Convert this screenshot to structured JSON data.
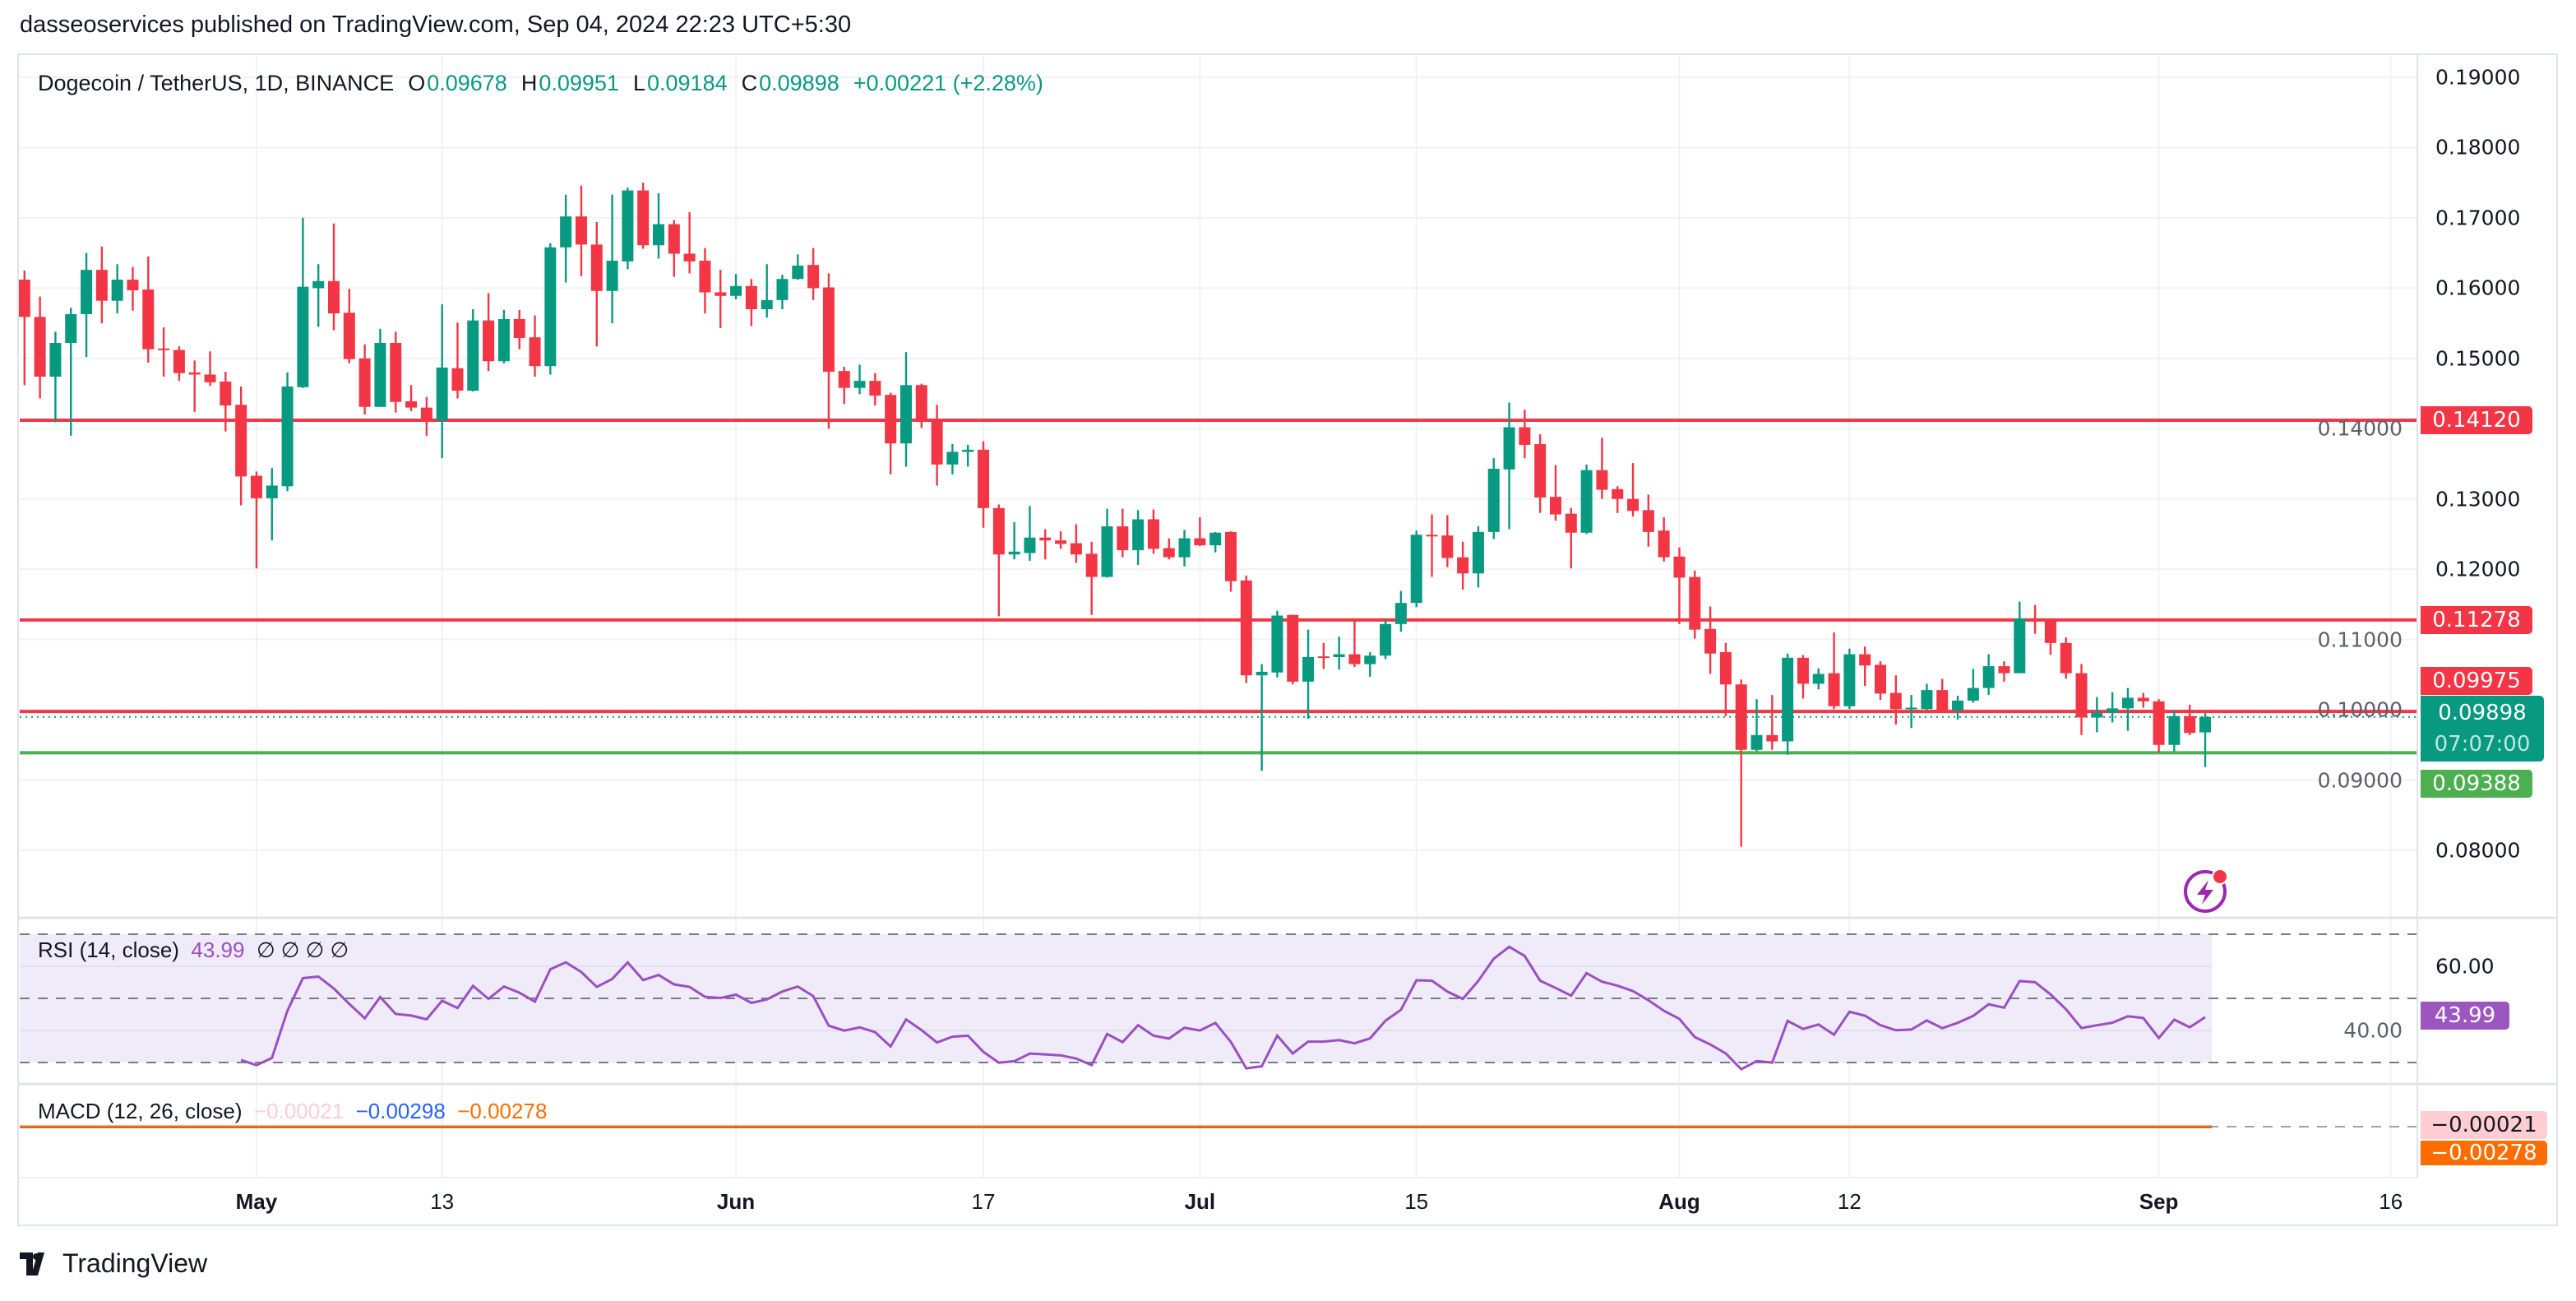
{
  "publisher_line": "dasseoservices published on TradingView.com, Sep 04, 2024 22:23 UTC+5:30",
  "legend": {
    "symbol": "Dogecoin / TetherUS, 1D, BINANCE",
    "o_label": "O",
    "o": "0.09678",
    "h_label": "H",
    "h": "0.09951",
    "l_label": "L",
    "l": "0.09184",
    "c_label": "C",
    "c": "0.09898",
    "change": "+0.00221 (+2.28%)"
  },
  "rsi_legend": {
    "name": "RSI (14, close)",
    "value": "43.99",
    "extras": "∅ ∅ ∅ ∅"
  },
  "macd_legend": {
    "name": "MACD (12, 26, close)",
    "hist": "−0.00021",
    "macd": "−0.00298",
    "signal": "−0.00278"
  },
  "price_labels": {
    "level1": "0.14120",
    "level2": "0.11278",
    "level3": "0.09975",
    "current": "0.09898",
    "countdown": "07:07:00",
    "support": "0.09388",
    "rsi": "43.99",
    "macd_hist": "−0.00021",
    "macd_signal": "−0.00278"
  },
  "colors": {
    "up": "#089981",
    "down": "#f23645",
    "support": "#4caf50",
    "rsi": "#9c4fc2",
    "macd": "#2962ff",
    "signal": "#ff6d00"
  },
  "logo_text": "TradingView",
  "chart_data": {
    "type": "candlestick",
    "title": "Dogecoin / TetherUS, 1D, BINANCE",
    "start_date": "2024-04-16",
    "ylim": [
      0.075,
      0.195
    ],
    "y_ticks": [
      "0.19000",
      "0.18000",
      "0.17000",
      "0.16000",
      "0.15000",
      "0.14000",
      "0.13000",
      "0.12000",
      "0.11000",
      "0.10000",
      "0.09000",
      "0.08000"
    ],
    "x_ticks": [
      {
        "label": "May",
        "date": "2024-05-01"
      },
      {
        "label": "13",
        "date": "2024-05-13"
      },
      {
        "label": "Jun",
        "date": "2024-06-01"
      },
      {
        "label": "17",
        "date": "2024-06-17"
      },
      {
        "label": "Jul",
        "date": "2024-07-01"
      },
      {
        "label": "15",
        "date": "2024-07-15"
      },
      {
        "label": "Aug",
        "date": "2024-08-01"
      },
      {
        "label": "12",
        "date": "2024-08-12"
      },
      {
        "label": "Sep",
        "date": "2024-09-01"
      },
      {
        "label": "16",
        "date": "2024-09-16"
      }
    ],
    "horizontal_lines": [
      {
        "value": 0.1412,
        "color": "#f23645"
      },
      {
        "value": 0.11278,
        "color": "#f23645"
      },
      {
        "value": 0.09975,
        "color": "#f23645"
      },
      {
        "value": 0.09388,
        "color": "#4caf50"
      }
    ],
    "rsi": {
      "period": 14,
      "upper": 70,
      "middle": 50,
      "lower": 30,
      "ticks": [
        "60.00",
        "40.00"
      ],
      "last": 43.99
    },
    "ohlc": [
      [
        0.1612,
        0.1625,
        0.1462,
        0.1559
      ],
      [
        0.1559,
        0.1588,
        0.1443,
        0.1474
      ],
      [
        0.1474,
        0.1538,
        0.1409,
        0.1522
      ],
      [
        0.1522,
        0.1572,
        0.139,
        0.1563
      ],
      [
        0.1563,
        0.165,
        0.1502,
        0.1626
      ],
      [
        0.1626,
        0.1659,
        0.155,
        0.1582
      ],
      [
        0.1582,
        0.1634,
        0.1564,
        0.1612
      ],
      [
        0.1612,
        0.163,
        0.1568,
        0.1597
      ],
      [
        0.1598,
        0.1645,
        0.1494,
        0.1513
      ],
      [
        0.1514,
        0.1544,
        0.1474,
        0.1512
      ],
      [
        0.1512,
        0.1517,
        0.1468,
        0.1479
      ],
      [
        0.148,
        0.1497,
        0.1424,
        0.1477
      ],
      [
        0.1477,
        0.151,
        0.1461,
        0.1466
      ],
      [
        0.1467,
        0.1481,
        0.1396,
        0.1433
      ],
      [
        0.1434,
        0.146,
        0.1291,
        0.1332
      ],
      [
        0.1333,
        0.1339,
        0.1201,
        0.1301
      ],
      [
        0.1301,
        0.1344,
        0.1241,
        0.1319
      ],
      [
        0.1318,
        0.148,
        0.1311,
        0.146
      ],
      [
        0.1459,
        0.17,
        0.1458,
        0.1602
      ],
      [
        0.16,
        0.1634,
        0.1545,
        0.161
      ],
      [
        0.161,
        0.1692,
        0.154,
        0.1564
      ],
      [
        0.1565,
        0.1599,
        0.1493,
        0.1499
      ],
      [
        0.15,
        0.152,
        0.142,
        0.1431
      ],
      [
        0.1431,
        0.1542,
        0.1431,
        0.1522
      ],
      [
        0.1522,
        0.1538,
        0.1423,
        0.1438
      ],
      [
        0.1439,
        0.1462,
        0.1425,
        0.143
      ],
      [
        0.143,
        0.1445,
        0.139,
        0.1411
      ],
      [
        0.1411,
        0.1577,
        0.1358,
        0.1487
      ],
      [
        0.1486,
        0.1551,
        0.1443,
        0.1454
      ],
      [
        0.1454,
        0.157,
        0.1453,
        0.1554
      ],
      [
        0.1554,
        0.1593,
        0.1482,
        0.1496
      ],
      [
        0.1496,
        0.1569,
        0.1493,
        0.1556
      ],
      [
        0.1556,
        0.1569,
        0.1513,
        0.1529
      ],
      [
        0.153,
        0.1561,
        0.1474,
        0.1489
      ],
      [
        0.1489,
        0.1664,
        0.1477,
        0.1658
      ],
      [
        0.1658,
        0.1733,
        0.1608,
        0.1702
      ],
      [
        0.1702,
        0.1746,
        0.1617,
        0.1662
      ],
      [
        0.1662,
        0.1694,
        0.1517,
        0.1596
      ],
      [
        0.1596,
        0.1733,
        0.155,
        0.1639
      ],
      [
        0.1638,
        0.1743,
        0.1627,
        0.1739
      ],
      [
        0.1739,
        0.175,
        0.1656,
        0.1661
      ],
      [
        0.1661,
        0.1735,
        0.1642,
        0.1691
      ],
      [
        0.1691,
        0.1697,
        0.1616,
        0.1649
      ],
      [
        0.1649,
        0.1708,
        0.1621,
        0.1638
      ],
      [
        0.1639,
        0.1657,
        0.1564,
        0.1594
      ],
      [
        0.1594,
        0.1626,
        0.1543,
        0.1589
      ],
      [
        0.1589,
        0.162,
        0.1584,
        0.1603
      ],
      [
        0.1603,
        0.1613,
        0.1546,
        0.157
      ],
      [
        0.157,
        0.1634,
        0.1558,
        0.1583
      ],
      [
        0.1583,
        0.1619,
        0.157,
        0.1613
      ],
      [
        0.1613,
        0.1648,
        0.1612,
        0.1632
      ],
      [
        0.1633,
        0.1657,
        0.1583,
        0.16
      ],
      [
        0.1601,
        0.1621,
        0.14,
        0.1481
      ],
      [
        0.1482,
        0.1488,
        0.1435,
        0.1458
      ],
      [
        0.1458,
        0.1491,
        0.1449,
        0.1468
      ],
      [
        0.1468,
        0.1479,
        0.1433,
        0.1447
      ],
      [
        0.1448,
        0.1451,
        0.1335,
        0.1379
      ],
      [
        0.1379,
        0.1509,
        0.1346,
        0.1462
      ],
      [
        0.1462,
        0.1464,
        0.1401,
        0.1413
      ],
      [
        0.141,
        0.1434,
        0.1319,
        0.1349
      ],
      [
        0.1349,
        0.1378,
        0.1335,
        0.1367
      ],
      [
        0.1367,
        0.1377,
        0.1346,
        0.137
      ],
      [
        0.137,
        0.1382,
        0.1259,
        0.1287
      ],
      [
        0.1287,
        0.1292,
        0.1133,
        0.1221
      ],
      [
        0.1221,
        0.1267,
        0.1214,
        0.1225
      ],
      [
        0.1223,
        0.129,
        0.1212,
        0.1245
      ],
      [
        0.1245,
        0.1257,
        0.1214,
        0.1241
      ],
      [
        0.1241,
        0.1254,
        0.1229,
        0.1236
      ],
      [
        0.1237,
        0.1264,
        0.1209,
        0.1221
      ],
      [
        0.1222,
        0.1239,
        0.1135,
        0.1189
      ],
      [
        0.1189,
        0.1286,
        0.1188,
        0.1261
      ],
      [
        0.1261,
        0.1286,
        0.1217,
        0.1227
      ],
      [
        0.1227,
        0.1284,
        0.1206,
        0.1271
      ],
      [
        0.1271,
        0.1285,
        0.1222,
        0.1229
      ],
      [
        0.123,
        0.1244,
        0.1214,
        0.1217
      ],
      [
        0.1217,
        0.1256,
        0.1204,
        0.1244
      ],
      [
        0.1244,
        0.1274,
        0.1233,
        0.1234
      ],
      [
        0.1234,
        0.1253,
        0.1224,
        0.1252
      ],
      [
        0.1253,
        0.1254,
        0.1168,
        0.1183
      ],
      [
        0.1184,
        0.1191,
        0.1038,
        0.1049
      ],
      [
        0.1049,
        0.1065,
        0.0913,
        0.1054
      ],
      [
        0.1053,
        0.1141,
        0.1046,
        0.1134
      ],
      [
        0.1135,
        0.1135,
        0.1036,
        0.104
      ],
      [
        0.104,
        0.1114,
        0.0987,
        0.1075
      ],
      [
        0.1076,
        0.1095,
        0.1058,
        0.1075
      ],
      [
        0.1075,
        0.1104,
        0.1057,
        0.1079
      ],
      [
        0.1079,
        0.1126,
        0.1061,
        0.1065
      ],
      [
        0.1065,
        0.1082,
        0.1047,
        0.1077
      ],
      [
        0.1077,
        0.1129,
        0.1072,
        0.1122
      ],
      [
        0.1122,
        0.1169,
        0.1111,
        0.1152
      ],
      [
        0.1152,
        0.1255,
        0.1146,
        0.1249
      ],
      [
        0.1249,
        0.1278,
        0.1189,
        0.1248
      ],
      [
        0.1248,
        0.1277,
        0.1203,
        0.1216
      ],
      [
        0.1217,
        0.1239,
        0.1171,
        0.1194
      ],
      [
        0.1194,
        0.1261,
        0.1174,
        0.1253
      ],
      [
        0.1253,
        0.1358,
        0.1243,
        0.1343
      ],
      [
        0.1342,
        0.1437,
        0.1257,
        0.1402
      ],
      [
        0.1402,
        0.1427,
        0.1358,
        0.1377
      ],
      [
        0.1378,
        0.1392,
        0.128,
        0.1302
      ],
      [
        0.1303,
        0.1348,
        0.1269,
        0.1278
      ],
      [
        0.1279,
        0.1287,
        0.1201,
        0.1252
      ],
      [
        0.1252,
        0.1349,
        0.125,
        0.1341
      ],
      [
        0.1341,
        0.1387,
        0.13,
        0.1313
      ],
      [
        0.1314,
        0.1318,
        0.128,
        0.13
      ],
      [
        0.13,
        0.1351,
        0.1275,
        0.1283
      ],
      [
        0.1284,
        0.1306,
        0.1232,
        0.1253
      ],
      [
        0.1255,
        0.1274,
        0.1211,
        0.1217
      ],
      [
        0.1218,
        0.1231,
        0.1122,
        0.1188
      ],
      [
        0.1189,
        0.1198,
        0.1101,
        0.1114
      ],
      [
        0.1115,
        0.1147,
        0.1051,
        0.108
      ],
      [
        0.1082,
        0.1095,
        0.0991,
        0.1036
      ],
      [
        0.1036,
        0.1043,
        0.0805,
        0.0943
      ],
      [
        0.0943,
        0.1015,
        0.0941,
        0.0964
      ],
      [
        0.0964,
        0.1021,
        0.0943,
        0.0955
      ],
      [
        0.0955,
        0.108,
        0.0936,
        0.1074
      ],
      [
        0.1074,
        0.1078,
        0.1016,
        0.1037
      ],
      [
        0.1037,
        0.1059,
        0.1029,
        0.1051
      ],
      [
        0.1052,
        0.111,
        0.1001,
        0.1005
      ],
      [
        0.1005,
        0.1087,
        0.1001,
        0.1079
      ],
      [
        0.1079,
        0.109,
        0.1034,
        0.1063
      ],
      [
        0.1064,
        0.1069,
        0.1014,
        0.1023
      ],
      [
        0.1024,
        0.1049,
        0.0979,
        0.1001
      ],
      [
        0.1001,
        0.1021,
        0.0974,
        0.1003
      ],
      [
        0.1001,
        0.1037,
        0.1,
        0.1028
      ],
      [
        0.1028,
        0.1044,
        0.0999,
        0.0999
      ],
      [
        0.0999,
        0.102,
        0.0986,
        0.1013
      ],
      [
        0.1013,
        0.1058,
        0.101,
        0.1031
      ],
      [
        0.1031,
        0.1079,
        0.1021,
        0.1062
      ],
      [
        0.1062,
        0.1069,
        0.104,
        0.1052
      ],
      [
        0.1052,
        0.1154,
        0.1052,
        0.113
      ],
      [
        0.113,
        0.1149,
        0.1108,
        0.1127
      ],
      [
        0.1127,
        0.1127,
        0.1078,
        0.1095
      ],
      [
        0.1095,
        0.1103,
        0.1044,
        0.1052
      ],
      [
        0.1052,
        0.1065,
        0.0964,
        0.0989
      ],
      [
        0.0989,
        0.1018,
        0.0968,
        0.0996
      ],
      [
        0.0996,
        0.1025,
        0.0982,
        0.1002
      ],
      [
        0.1002,
        0.1031,
        0.097,
        0.1017
      ],
      [
        0.1017,
        0.1024,
        0.1003,
        0.1012
      ],
      [
        0.1012,
        0.1015,
        0.0939,
        0.095
      ],
      [
        0.095,
        0.0999,
        0.0941,
        0.0991
      ],
      [
        0.0991,
        0.1007,
        0.0964,
        0.0967
      ],
      [
        0.09678,
        0.09951,
        0.09184,
        0.09898
      ]
    ]
  }
}
